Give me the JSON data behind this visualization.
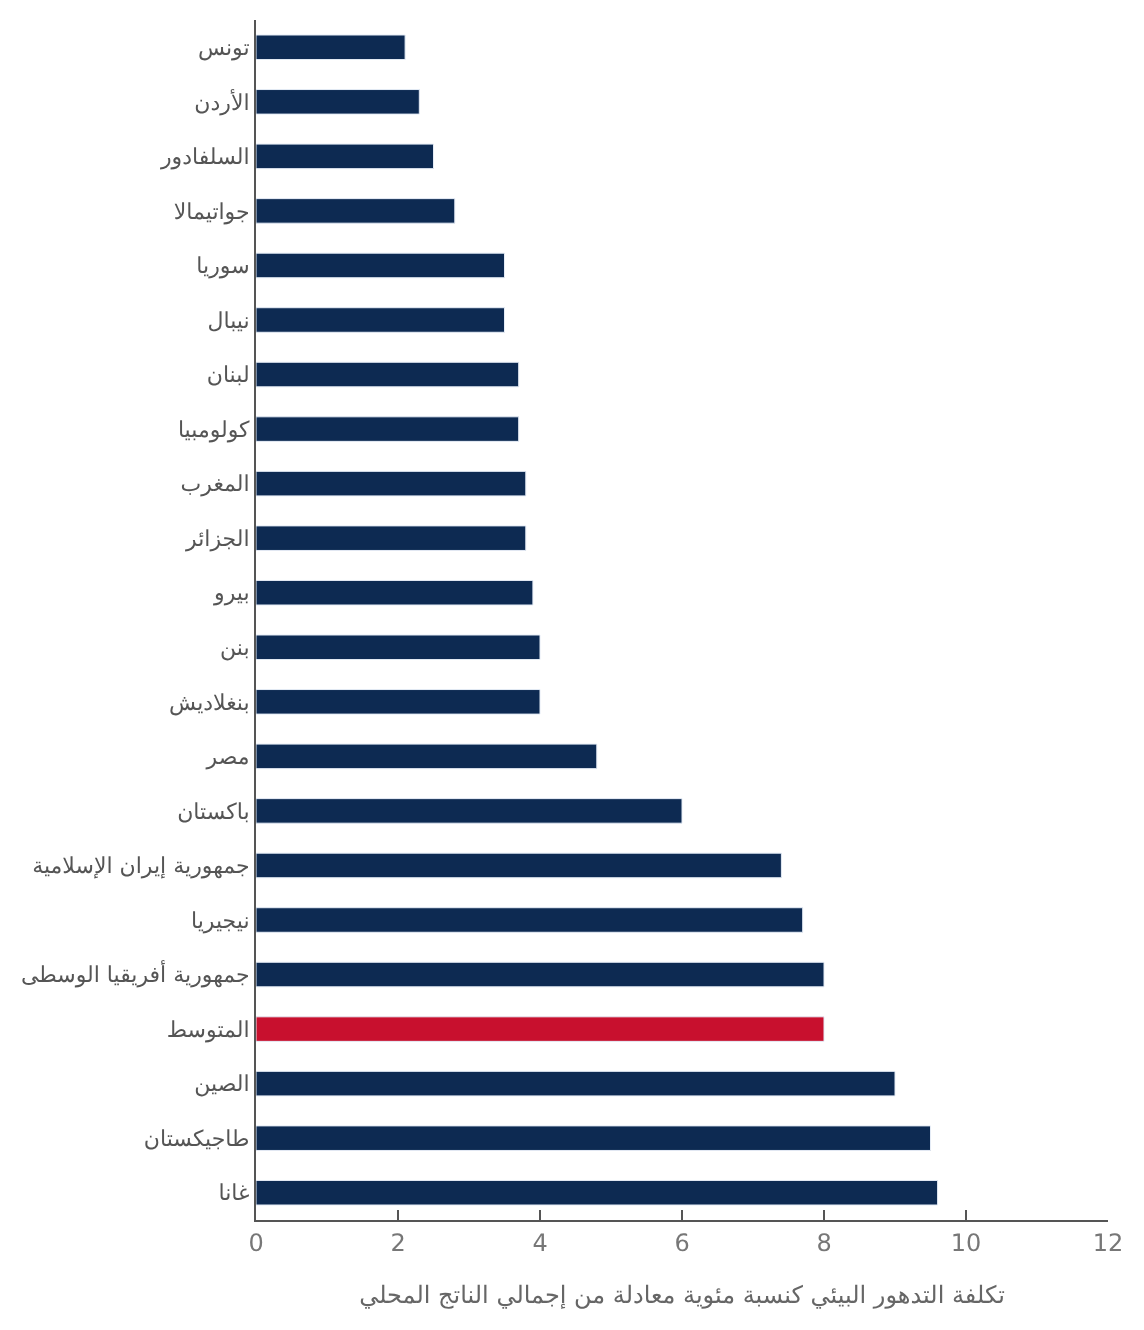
{
  "chart_data": {
    "type": "bar",
    "orientation": "horizontal",
    "xlabel": "تكلفة التدهور البيئي كنسبة مئوية معادلة من إجمالي الناتج المحلي",
    "categories": [
      "تونس",
      "الأردن",
      "السلفادور",
      "جواتيمالا",
      "سوريا",
      "نيبال",
      "لبنان",
      "كولومبيا",
      "المغرب",
      "الجزائر",
      "بيرو",
      "بنن",
      "بنغلاديش",
      "مصر",
      "باكستان",
      "جمهورية إيران الإسلامية",
      "نيجيريا",
      "جمهورية أفريقيا الوسطى",
      "المتوسط",
      "الصين",
      "طاجيكستان",
      "غانا"
    ],
    "values": [
      2.1,
      2.3,
      2.5,
      2.8,
      3.5,
      3.5,
      3.7,
      3.7,
      3.8,
      3.8,
      3.9,
      4.0,
      4.0,
      4.8,
      6.0,
      7.4,
      7.7,
      8.0,
      8.0,
      9.0,
      9.5,
      9.6
    ],
    "colors": [
      "#0d2a52",
      "#0d2a52",
      "#0d2a52",
      "#0d2a52",
      "#0d2a52",
      "#0d2a52",
      "#0d2a52",
      "#0d2a52",
      "#0d2a52",
      "#0d2a52",
      "#0d2a52",
      "#0d2a52",
      "#0d2a52",
      "#0d2a52",
      "#0d2a52",
      "#0d2a52",
      "#0d2a52",
      "#0d2a52",
      "#c8102e",
      "#0d2a52",
      "#0d2a52",
      "#0d2a52"
    ],
    "xlim": [
      0,
      12
    ],
    "xticks": [
      0,
      2,
      4,
      6,
      8,
      10,
      12
    ]
  }
}
